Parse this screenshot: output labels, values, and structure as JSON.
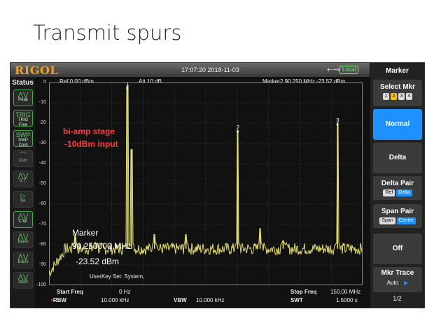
{
  "slide": {
    "title": "Transmit spurs"
  },
  "instrument": {
    "brand": "RIGOL",
    "datetime": "17:07:20 2018-11-03",
    "usb_icon": "usb-icon",
    "remote_status": "Local"
  },
  "status_panel": {
    "title": "Status",
    "items": [
      {
        "icon": "peak-icon",
        "label": "Peak",
        "active": true
      },
      {
        "icon": "trig-icon",
        "label": "TRIG Free",
        "active": true
      },
      {
        "icon": "swp-icon",
        "label": "SWP Cont",
        "active": true
      },
      {
        "icon": "corr-icon",
        "label": "Corr",
        "active": false
      },
      {
        "icon": "st-icon",
        "label": "S.T.",
        "active": false
      },
      {
        "icon": "pa-icon",
        "label": "PA",
        "active": false
      },
      {
        "icon": "cw-icon",
        "label": "C.W.",
        "active": true
      },
      {
        "icon": "blank-icon",
        "label": "Blank",
        "active": false
      },
      {
        "icon": "blank-icon",
        "label": "Blank",
        "active": false
      },
      {
        "icon": "math-icon",
        "label": "Math",
        "active": false
      }
    ]
  },
  "header": {
    "ref": "Ref  0.00 dBm",
    "att": "Att    10 dB",
    "marker_readout": "Marker2  90.250 MHz  -23.52 dBm"
  },
  "annotation": {
    "line1": "bi-amp stage",
    "line2": "-10dBm input"
  },
  "marker_overlay": {
    "title": "Marker",
    "freq": "90.250000 MHz",
    "amp": "-23.52 dBm"
  },
  "userkey": "UserKey Set:   System,",
  "footer": {
    "start_label": "Start Freq",
    "start_value": "0 Hz",
    "stop_label": "Stop Freq",
    "stop_value": "150.00 MHz",
    "rbw_label": "RBW",
    "rbw_value": "10.000 kHz",
    "vbw_label": "VBW",
    "vbw_value": "10.000 kHz",
    "swt_label": "SWT",
    "swt_value": "1.5000 s"
  },
  "chart_data": {
    "type": "line",
    "ylim": [
      -100,
      0
    ],
    "xlim": [
      0,
      150
    ],
    "y_ticks": [
      0,
      -10,
      -20,
      -30,
      -40,
      -50,
      -60,
      -70,
      -80,
      -90,
      -100
    ],
    "grid": true,
    "noise_floor": -82,
    "peaks": [
      {
        "x": 12.5,
        "y": -75
      },
      {
        "x": 22.5,
        "y": -80
      },
      {
        "x": 37.5,
        "y": -2
      },
      {
        "x": 39.5,
        "y": -33
      },
      {
        "x": 50.5,
        "y": -75
      },
      {
        "x": 65.5,
        "y": -75
      },
      {
        "x": 90.25,
        "y": -23.52
      },
      {
        "x": 101,
        "y": -72
      },
      {
        "x": 112,
        "y": -78
      },
      {
        "x": 138,
        "y": -20
      }
    ],
    "markers": [
      {
        "label": "1",
        "x": 37.5,
        "y": -2
      },
      {
        "label": "2",
        "x": 90.25,
        "y": -23.52
      },
      {
        "label": "3",
        "x": 138,
        "y": -20
      }
    ],
    "trace_color": "#e8e070"
  },
  "menu": {
    "title": "Marker",
    "select_label": "Select Mkr",
    "select_options": [
      "1",
      "2",
      "3",
      "4"
    ],
    "select_selected": "2",
    "normal": "Normal",
    "delta": "Delta",
    "delta_pair": "Delta Pair",
    "delta_pair_opts": [
      "Ref",
      "Delta"
    ],
    "span_pair": "Span Pair",
    "span_pair_opts": [
      "Span",
      "Center"
    ],
    "off": "Off",
    "mkr_trace": "Mkr Trace",
    "mkr_trace_value": "Auto",
    "page": "1/2"
  }
}
